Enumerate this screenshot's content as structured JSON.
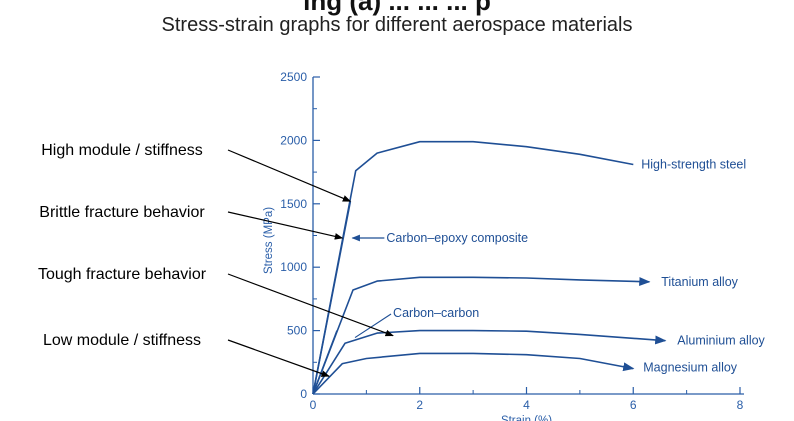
{
  "header": {
    "title_cut": "ing (a) ... ... ... p",
    "subtitle": "Stress-strain graphs for different aerospace materials"
  },
  "chart_data": {
    "type": "line",
    "title": "Stress-strain graphs for different aerospace materials",
    "xlabel": "Strain (%)",
    "ylabel": "Stress (MPa)",
    "xlim": [
      0,
      8
    ],
    "ylim": [
      0,
      2500
    ],
    "x_ticks": [
      0,
      2,
      4,
      6,
      8
    ],
    "y_ticks": [
      0,
      500,
      1000,
      1500,
      2000,
      2500
    ],
    "series": [
      {
        "name": "High-strength steel",
        "x": [
          0,
          0.8,
          1.2,
          2.0,
          3.0,
          4.0,
          5.0,
          6.0
        ],
        "y": [
          0,
          1760,
          1900,
          1990,
          1990,
          1950,
          1890,
          1810
        ],
        "arrow": false
      },
      {
        "name": "Carbon–epoxy composite",
        "x": [
          0,
          0.7
        ],
        "y": [
          0,
          1520
        ],
        "arrow": false
      },
      {
        "name": "Titanium alloy",
        "x": [
          0,
          0.75,
          1.2,
          2.0,
          3.0,
          4.0,
          5.0,
          6.3
        ],
        "y": [
          0,
          820,
          890,
          920,
          920,
          915,
          900,
          885
        ],
        "arrow": true
      },
      {
        "name": "Carbon–carbon",
        "x": [
          0,
          0.45
        ],
        "y": [
          0,
          500
        ],
        "arrow": false
      },
      {
        "name": "Aluminium alloy",
        "x": [
          0,
          0.6,
          1.2,
          2.0,
          3.0,
          4.0,
          5.0,
          6.6
        ],
        "y": [
          0,
          400,
          480,
          500,
          500,
          495,
          470,
          420
        ],
        "arrow": true
      },
      {
        "name": "Magnesium alloy",
        "x": [
          0,
          0.55,
          1.0,
          2.0,
          3.0,
          4.0,
          5.0,
          6.0
        ],
        "y": [
          0,
          240,
          280,
          320,
          320,
          310,
          280,
          200
        ],
        "arrow": true
      }
    ],
    "series_labels": [
      {
        "text": "High-strength steel",
        "x": 6.0,
        "y": 1810,
        "leader": "none"
      },
      {
        "text": "Carbon–epoxy composite",
        "x": 0.7,
        "y": 1230,
        "leader": "arrow"
      },
      {
        "text": "Titanium alloy",
        "x": 6.3,
        "y": 885,
        "leader": "none"
      },
      {
        "text": "Carbon–carbon",
        "x": 1.2,
        "y": 560,
        "leader": "line"
      },
      {
        "text": "Aluminium alloy",
        "x": 6.6,
        "y": 420,
        "leader": "none"
      },
      {
        "text": "Magnesium alloy",
        "x": 6.0,
        "y": 200,
        "leader": "none"
      }
    ],
    "annotations": [
      {
        "text": "High module / stiffness",
        "target": [
          0.7,
          1520
        ]
      },
      {
        "text": "Brittle fracture behavior",
        "target": [
          0.55,
          1230
        ]
      },
      {
        "text": "Tough fracture behavior",
        "target": [
          1.5,
          460
        ]
      },
      {
        "text": "Low module / stiffness",
        "target": [
          0.3,
          140
        ]
      }
    ]
  },
  "colors": {
    "curve": "#1f4f95",
    "axis": "#2a5ea8",
    "annotation": "#000000"
  }
}
